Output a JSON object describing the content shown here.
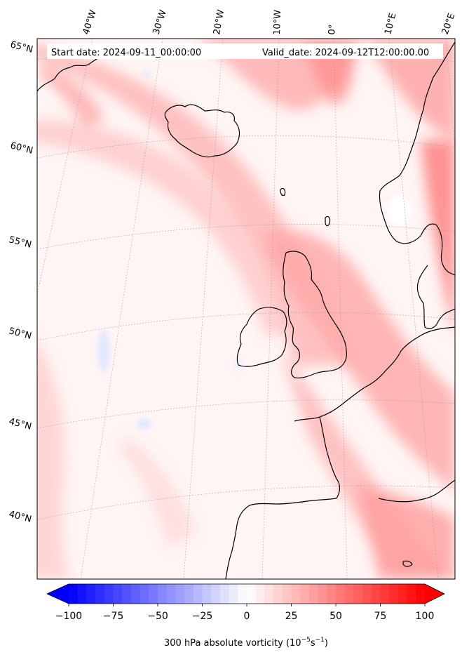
{
  "map": {
    "start_date_text": "Start date: 2024-09-11_00:00:00",
    "valid_date_text": "Valid_date: 2024-09-12T12:00:00.00",
    "lon_labels": [
      "40°W",
      "30°W",
      "20°W",
      "10°W",
      "0°",
      "10°E",
      "20°E"
    ],
    "lat_labels": [
      "65°N",
      "60°N",
      "55°N",
      "50°N",
      "45°N",
      "40°N"
    ]
  },
  "colorbar": {
    "ticks": [
      "−100",
      "−75",
      "−50",
      "−25",
      "0",
      "25",
      "50",
      "75",
      "100"
    ],
    "tick_values": [
      -100,
      -75,
      -50,
      -25,
      0,
      25,
      50,
      75,
      100
    ],
    "min": -100,
    "max": 100,
    "step": 5,
    "label_main": "300 hPa absolute vorticity (10",
    "label_exp1": "−5",
    "label_mid": "s",
    "label_exp2": "−1",
    "label_end": ")",
    "colors": {
      "negative": "#0000ff",
      "zero": "#ffffff",
      "positive": "#ff0000"
    }
  }
}
